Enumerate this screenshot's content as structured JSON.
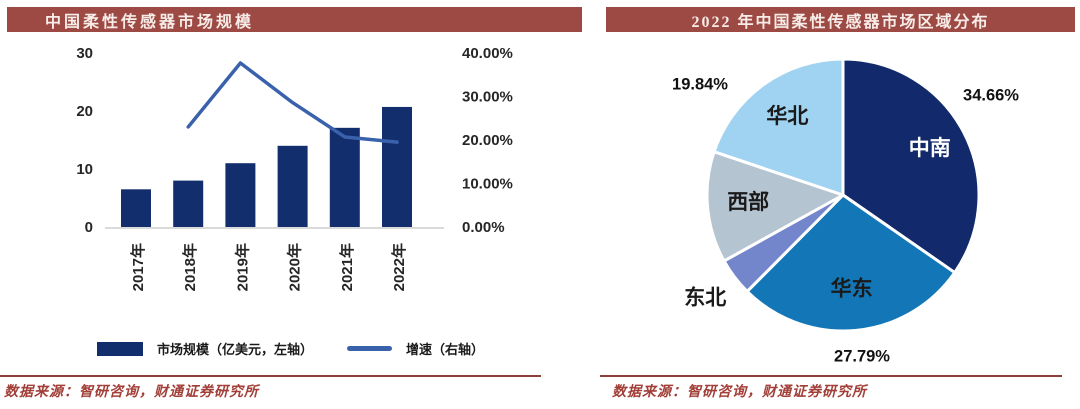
{
  "page": {
    "background": "#FFFFFF",
    "accent_maroon": "#9E4A44",
    "rule_color": "#8E3E38",
    "source_text_color": "#A23F38"
  },
  "left_panel": {
    "title": "中国柔性传感器市场规模",
    "source": "数据来源：智研咨询，财通证券研究所"
  },
  "right_panel": {
    "title": "2022 年中国柔性传感器市场区域分布",
    "source": "数据来源：智研咨询，财通证券研究所"
  },
  "chart_data": [
    {
      "type": "bar",
      "subtype": "bar-line-combo",
      "title": "中国柔性传感器市场规模",
      "categories": [
        "2017年",
        "2018年",
        "2019年",
        "2020年",
        "2021年",
        "2022年"
      ],
      "series": [
        {
          "name": "市场规模（亿美元，左轴）",
          "type": "bar",
          "axis": "left",
          "color": "#132E6D",
          "values": [
            6.5,
            8.0,
            11.0,
            14.0,
            17.1,
            20.7
          ]
        },
        {
          "name": "增速（右轴）",
          "type": "line",
          "axis": "right",
          "color": "#3A62AC",
          "values": [
            null,
            23.0,
            37.7,
            28.6,
            20.7,
            19.5
          ]
        }
      ],
      "left_axis": {
        "min": 0,
        "max": 30,
        "ticks": [
          "0",
          "10",
          "20",
          "30"
        ]
      },
      "right_axis": {
        "min": 0,
        "max": 40,
        "ticks": [
          "0.00%",
          "10.00%",
          "20.00%",
          "30.00%",
          "40.00%"
        ]
      },
      "grid": false,
      "legend_position": "bottom"
    },
    {
      "type": "pie",
      "title": "2022 年中国柔性传感器市场区域分布",
      "start_angle_deg": 0,
      "direction": "clockwise",
      "slices": [
        {
          "name": "中南",
          "value": 34.66,
          "pct_label": "34.66%",
          "color": "#122A6B",
          "text_color": "#FFFFFF"
        },
        {
          "name": "华东",
          "value": 27.79,
          "pct_label": "27.79%",
          "color": "#1377B7",
          "text_color": "#1A1A1A"
        },
        {
          "name": "东北",
          "value": 4.49,
          "pct_label": null,
          "color": "#7385CB",
          "text_color": "#1A1A1A"
        },
        {
          "name": "西部",
          "value": 13.22,
          "pct_label": null,
          "color": "#B5C4D1",
          "text_color": "#1A1A1A"
        },
        {
          "name": "华北",
          "value": 19.84,
          "pct_label": "19.84%",
          "color": "#A0D3F2",
          "text_color": "#1A1A1A"
        }
      ]
    }
  ]
}
